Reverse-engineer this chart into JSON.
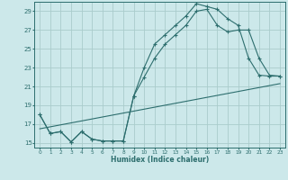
{
  "xlabel": "Humidex (Indice chaleur)",
  "bg_color": "#cce8ea",
  "grid_color": "#aacccc",
  "line_color": "#2d6e6e",
  "xlim": [
    -0.5,
    23.5
  ],
  "ylim": [
    14.5,
    30.0
  ],
  "yticks": [
    15,
    17,
    19,
    21,
    23,
    25,
    27,
    29
  ],
  "xticks": [
    0,
    1,
    2,
    3,
    4,
    5,
    6,
    7,
    8,
    9,
    10,
    11,
    12,
    13,
    14,
    15,
    16,
    17,
    18,
    19,
    20,
    21,
    22,
    23
  ],
  "line1_x": [
    0,
    1,
    2,
    3,
    4,
    5,
    6,
    7,
    8,
    9,
    10,
    11,
    12,
    13,
    14,
    15,
    16,
    17,
    18,
    19,
    20,
    21,
    22,
    23
  ],
  "line1_y": [
    18.0,
    16.0,
    16.2,
    15.1,
    16.2,
    15.4,
    15.2,
    15.2,
    15.2,
    20.0,
    23.0,
    25.5,
    26.5,
    27.5,
    28.5,
    29.8,
    29.5,
    29.2,
    28.2,
    27.5,
    24.0,
    22.2,
    22.1,
    22.1
  ],
  "line2_x": [
    0,
    1,
    2,
    3,
    4,
    5,
    6,
    7,
    8,
    9,
    10,
    11,
    12,
    13,
    14,
    15,
    16,
    17,
    18,
    19,
    20,
    21,
    22,
    23
  ],
  "line2_y": [
    18.0,
    16.0,
    16.2,
    15.1,
    16.2,
    15.4,
    15.2,
    15.2,
    15.2,
    20.0,
    22.0,
    24.0,
    25.5,
    26.5,
    27.5,
    29.0,
    29.2,
    27.5,
    26.8,
    27.0,
    27.0,
    24.0,
    22.2,
    22.1
  ],
  "line3_x": [
    0,
    23
  ],
  "line3_y": [
    16.5,
    21.3
  ]
}
